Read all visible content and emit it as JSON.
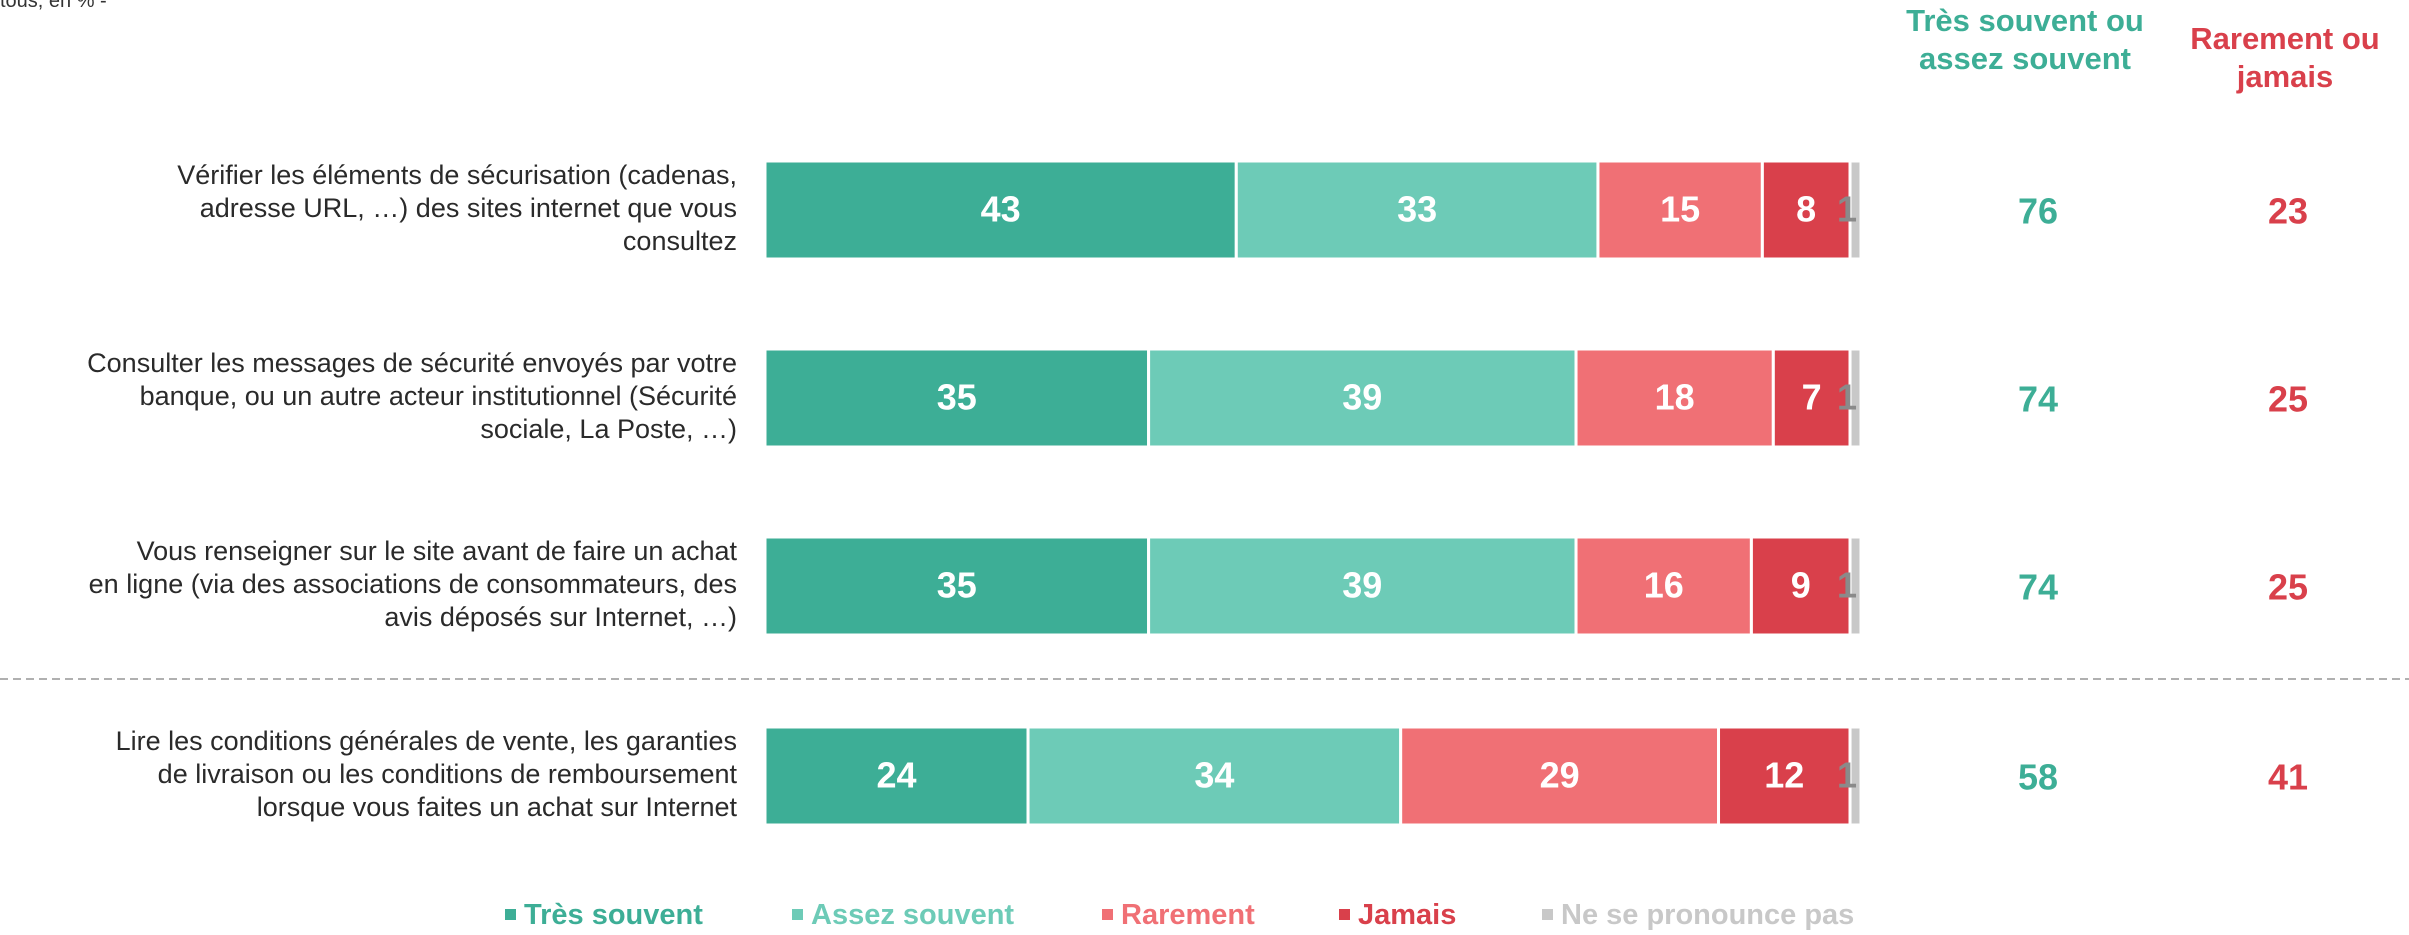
{
  "note": "tous, en % -",
  "column_headers": {
    "positive": "Très souvent ou assez souvent",
    "negative": "Rarement ou jamais"
  },
  "colors": {
    "tres_souvent": "#3dae96",
    "assez_souvent": "#6dcbb7",
    "rarement": "#f07075",
    "jamais": "#d9404b",
    "nsp": "#c8c8c8",
    "positive_text": "#3dae96",
    "negative_text": "#d9404b"
  },
  "chart_data": {
    "type": "bar",
    "orientation": "horizontal",
    "stacked": true,
    "unit": "%",
    "grid": false,
    "legend_position": "bottom",
    "categories": [
      "Vérifier les éléments de sécurisation (cadenas, adresse URL, …) des sites internet que vous consultez",
      "Consulter les messages de sécurité envoyés par votre banque, ou un autre acteur institutionnel (Sécurité sociale, La Poste, …)",
      "Vous renseigner sur le site avant de faire un achat en ligne (via des associations de consommateurs, des avis déposés sur Internet, …)",
      "Lire les conditions générales de vente, les garanties de livraison ou les conditions de remboursement lorsque vous faites un achat sur Internet"
    ],
    "series": [
      {
        "name": "Très souvent",
        "color": "#3dae96",
        "values": [
          43,
          35,
          35,
          24
        ]
      },
      {
        "name": "Assez souvent",
        "color": "#6dcbb7",
        "values": [
          33,
          39,
          39,
          34
        ]
      },
      {
        "name": "Rarement",
        "color": "#f07075",
        "values": [
          15,
          18,
          16,
          29
        ]
      },
      {
        "name": "Jamais",
        "color": "#d9404b",
        "values": [
          8,
          7,
          9,
          12
        ]
      },
      {
        "name": "Ne se pronounce pas",
        "color": "#c8c8c8",
        "values": [
          1,
          1,
          1,
          1
        ]
      }
    ],
    "totals": {
      "positive": [
        76,
        74,
        74,
        58
      ],
      "negative": [
        23,
        25,
        25,
        41
      ]
    },
    "xlim": [
      0,
      100
    ]
  }
}
